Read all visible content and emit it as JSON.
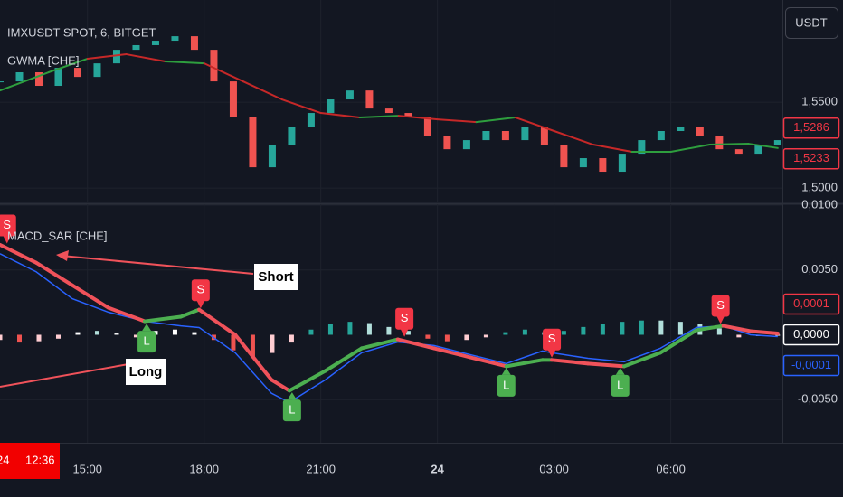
{
  "chart_data": [
    {
      "type": "candlestick",
      "title": "IMXUSDT SPOT, 6, BITGET",
      "currency": "USDT",
      "crosshair": {
        "date": "24",
        "time": "12:36"
      },
      "x": [
        12.75,
        13.25,
        13.75,
        14.25,
        14.75,
        15.25,
        15.75,
        16.25,
        16.75,
        17.25,
        17.75,
        18.25,
        18.75,
        19.25,
        19.75,
        20.25,
        20.75,
        21.25,
        21.75,
        22.25,
        22.75,
        23.25,
        23.75,
        24.25,
        24.75,
        25.25,
        25.75,
        26.25,
        26.75,
        27.25,
        27.75,
        28.25,
        28.75,
        29.25,
        29.75,
        30.25,
        30.75,
        31.25,
        31.75,
        32.25,
        32.75
      ],
      "values": [
        1.5621,
        1.5674,
        1.5595,
        1.57,
        1.5647,
        1.5726,
        1.5805,
        1.5832,
        1.5858,
        1.5884,
        1.5805,
        1.5621,
        1.5411,
        1.5121,
        1.5253,
        1.5358,
        1.5437,
        1.5516,
        1.5568,
        1.5463,
        1.5437,
        1.5411,
        1.5305,
        1.5226,
        1.5279,
        1.5332,
        1.5279,
        1.5358,
        1.5253,
        1.5121,
        1.5174,
        1.5095,
        1.52,
        1.5279,
        1.5332,
        1.5358,
        1.5305,
        1.5226,
        1.52,
        1.5253,
        1.5279
      ],
      "up_color": "#26a69a",
      "down_color": "#ef5350",
      "series": [
        {
          "name": "GWMA [CHE]",
          "x": [
            12.75,
            14,
            15,
            16,
            17,
            18,
            19,
            20,
            21,
            22,
            23,
            24,
            25,
            26,
            27,
            28,
            29,
            30,
            31,
            32,
            32.75
          ],
          "values": [
            1.5568,
            1.5674,
            1.5753,
            1.5779,
            1.5737,
            1.5726,
            1.5621,
            1.5516,
            1.5437,
            1.5411,
            1.5421,
            1.54,
            1.5384,
            1.5411,
            1.5332,
            1.5253,
            1.5211,
            1.5211,
            1.5253,
            1.5258,
            1.5233
          ],
          "colors": [
            "#2e9e3e",
            "#2e9e3e",
            "#2e9e3e",
            "#c62828",
            "#c62828",
            "#2e9e3e",
            "#c62828",
            "#c62828",
            "#c62828",
            "#c62828",
            "#2e9e3e",
            "#c62828",
            "#c62828",
            "#2e9e3e",
            "#c62828",
            "#c62828",
            "#c62828",
            "#2e9e3e",
            "#2e9e3e",
            "#2e9e3e",
            "#2e9e3e"
          ]
        }
      ],
      "xlim": [
        12.75,
        32.87
      ],
      "xticks": [
        {
          "value": 15,
          "label": "15:00"
        },
        {
          "value": 18,
          "label": "18:00"
        },
        {
          "value": 21,
          "label": "21:00"
        },
        {
          "value": 24,
          "label": "24",
          "bold": true
        },
        {
          "value": 27,
          "label": "03:00"
        },
        {
          "value": 30,
          "label": "06:00"
        }
      ],
      "ylim": [
        1.4911,
        1.6095
      ],
      "yticks": [
        {
          "value": 1.55,
          "label": "1,5500"
        },
        {
          "value": 1.5,
          "label": "1,5000"
        }
      ],
      "grid": true,
      "last_values": [
        {
          "value": 1.5286,
          "label": "1,5286",
          "color": "#f23645"
        },
        {
          "value": 1.5233,
          "label": "1,5233",
          "color": "#f23645"
        }
      ]
    },
    {
      "type": "macd",
      "title": "MACD_SAR [CHE]",
      "xlim": [
        12.75,
        32.87
      ],
      "ylim": [
        -0.00833,
        0.01007
      ],
      "yticks": [
        {
          "value": 0.01,
          "label": "0,0100"
        },
        {
          "value": 0.005,
          "label": "0,0050"
        },
        {
          "value": -0.005,
          "label": "-0,0050"
        }
      ],
      "grid": true,
      "macd": {
        "color": "#2962ff",
        "x": [
          12.75,
          13.68,
          14.61,
          15.54,
          16.47,
          17.4,
          17.87,
          18.8,
          19.73,
          20.19,
          21.12,
          22.05,
          22.98,
          23.91,
          24.84,
          25.77,
          26.7,
          26.94,
          27.87,
          28.8,
          29.73,
          30.66,
          31.35,
          32.05,
          32.75
        ],
        "values": [
          0.00625,
          0.00486,
          0.00278,
          0.00174,
          0.00104,
          0.00069,
          0.00056,
          -0.00139,
          -0.00451,
          -0.00521,
          -0.00347,
          -0.00139,
          -0.00056,
          -0.00083,
          -0.00153,
          -0.00222,
          -0.00125,
          -0.00139,
          -0.00181,
          -0.00208,
          -0.00104,
          0.00056,
          0.00069,
          0,
          -0.00014
        ]
      },
      "sar": {
        "x": [
          12.75,
          13.68,
          14.61,
          15.54,
          16.47,
          17.4,
          17.87,
          18.8,
          19.73,
          20.19,
          21.12,
          22.05,
          22.98,
          23.91,
          24.84,
          25.77,
          26.7,
          26.94,
          27.87,
          28.8,
          29.73,
          30.66,
          31.35,
          32.05,
          32.75
        ],
        "values": [
          0.00694,
          0.00556,
          0.00382,
          0.00208,
          0.00104,
          0.00139,
          0.00194,
          0,
          -0.00347,
          -0.00431,
          -0.00278,
          -0.00104,
          -0.00035,
          -0.00104,
          -0.00174,
          -0.00243,
          -0.00194,
          -0.00194,
          -0.00222,
          -0.00243,
          -0.00139,
          0.00035,
          0.00069,
          0.00028,
          0.0001
        ],
        "colors": [
          "#f0525a",
          "#f0525a",
          "#f0525a",
          "#f0525a",
          "#f0525a",
          "#4caf50",
          "#4caf50",
          "#f0525a",
          "#f0525a",
          "#f0525a",
          "#4caf50",
          "#4caf50",
          "#4caf50",
          "#f0525a",
          "#f0525a",
          "#f0525a",
          "#4caf50",
          "#4caf50",
          "#f0525a",
          "#f0525a",
          "#4caf50",
          "#4caf50",
          "#4caf50",
          "#f0525a",
          "#f0525a"
        ]
      },
      "histogram": {
        "x": [
          12.75,
          13.25,
          13.75,
          14.25,
          14.75,
          15.25,
          15.75,
          16.25,
          16.75,
          17.25,
          17.75,
          18.25,
          18.75,
          19.25,
          19.75,
          20.25,
          20.75,
          21.25,
          21.75,
          22.25,
          22.75,
          23.25,
          23.75,
          24.25,
          24.75,
          25.25,
          25.75,
          26.25,
          26.75,
          27.25,
          27.75,
          28.25,
          28.75,
          29.25,
          29.75,
          30.25,
          30.75,
          31.25,
          31.75,
          32.25,
          32.75
        ],
        "values": [
          -0.0004,
          -0.0006,
          -0.0005,
          -0.0003,
          0.0002,
          0.0003,
          0.0001,
          -0.0002,
          0.0003,
          0.0004,
          0.0002,
          -0.0004,
          -0.0012,
          -0.0018,
          -0.0014,
          -0.0006,
          0.0004,
          0.0008,
          0.001,
          0.0009,
          0.0006,
          0.0003,
          -0.0003,
          -0.0005,
          -0.0004,
          -0.0002,
          0.0002,
          0.0004,
          0.0002,
          0.0003,
          0.0006,
          0.0008,
          0.001,
          0.0011,
          0.0011,
          0.001,
          0.0008,
          0.0005,
          -0.0002,
          -0.0001,
          0
        ],
        "colors": [
          "#ffcdd2",
          "#ef5350",
          "#ffcdd2",
          "#ffcdd2",
          "#ffffff",
          "#b2dfdb",
          "#ffffff",
          "#ffcdd2",
          "#ffffff",
          "#ffffff",
          "#ffffff",
          "#ef5350",
          "#ef5350",
          "#ef5350",
          "#ffcdd2",
          "#ffcdd2",
          "#26a69a",
          "#26a69a",
          "#26a69a",
          "#b2dfdb",
          "#b2dfdb",
          "#b2dfdb",
          "#ef5350",
          "#ef5350",
          "#ffcdd2",
          "#ffcdd2",
          "#26a69a",
          "#26a69a",
          "#b2dfdb",
          "#26a69a",
          "#26a69a",
          "#26a69a",
          "#26a69a",
          "#26a69a",
          "#b2dfdb",
          "#b2dfdb",
          "#b2dfdb",
          "#b2dfdb",
          "#ffcdd2",
          "#ffcdd2",
          "#ffffff"
        ]
      },
      "signals": [
        {
          "label": "S",
          "x": 12.93,
          "value": 0.0069,
          "color": "#f23645"
        },
        {
          "label": "L",
          "x": 16.52,
          "value": 0.001,
          "color": "#4caf50"
        },
        {
          "label": "S",
          "x": 17.91,
          "value": 0.0019,
          "color": "#f23645"
        },
        {
          "label": "L",
          "x": 20.26,
          "value": -0.0043,
          "color": "#4caf50"
        },
        {
          "label": "S",
          "x": 23.15,
          "value": -0.0003,
          "color": "#f23645"
        },
        {
          "label": "L",
          "x": 25.77,
          "value": -0.0024,
          "color": "#4caf50"
        },
        {
          "label": "S",
          "x": 26.94,
          "value": -0.0019,
          "color": "#f23645"
        },
        {
          "label": "L",
          "x": 28.7,
          "value": -0.0024,
          "color": "#4caf50"
        },
        {
          "label": "S",
          "x": 31.28,
          "value": 0.0007,
          "color": "#f23645"
        }
      ],
      "annotations": [
        "Short",
        "Long"
      ],
      "last_values": [
        {
          "value": 0.0001,
          "label": "0,0001",
          "color": "#f23645"
        },
        {
          "value": 0,
          "label": "0,0000",
          "color": "#ffffff"
        },
        {
          "value": -0.0001,
          "label": "-0,0001",
          "color": "#2962ff"
        }
      ]
    }
  ]
}
